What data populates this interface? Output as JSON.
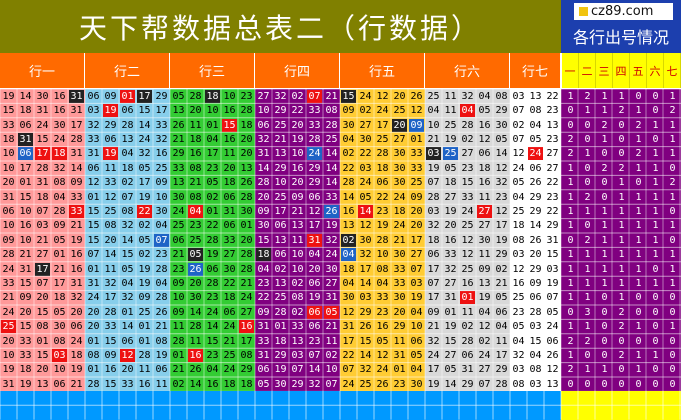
{
  "title": "天下帮数据总表二（行数据）",
  "site_badge": "cz89.com",
  "side_title": "各行出号情况",
  "groups": [
    "行一",
    "行二",
    "行三",
    "行四",
    "行五",
    "行六",
    "行七"
  ],
  "count_headers": [
    "一",
    "二",
    "三",
    "四",
    "五",
    "六",
    "七"
  ],
  "colors": {
    "g1": "#ff9999",
    "g2": "#87ceeb",
    "g3": "#33cc33",
    "g4": "#800080",
    "g5": "#ffcc33",
    "g6": "#d9d9d9",
    "g7": "#ffffff",
    "hit_red": "#ee1111",
    "hit_blue": "#1e63c6",
    "hit_dark": "#222222",
    "count_purple": "#800080",
    "count_yellow": "#ffff00",
    "footer_blue": "#0099ff",
    "footer_yellow": "#ffff00"
  },
  "rows": [
    {
      "v": [
        [
          19,
          14,
          30,
          16,
          31
        ],
        [
          6,
          9,
          1,
          17,
          29
        ],
        [
          5,
          28,
          18,
          10,
          23
        ],
        [
          27,
          32,
          2,
          7,
          21
        ],
        [
          15,
          24,
          12,
          20,
          26
        ],
        [
          25,
          11,
          32,
          4,
          8
        ],
        [
          3,
          13,
          22
        ]
      ],
      "c": [
        1,
        2,
        1,
        1,
        0,
        0,
        1
      ],
      "h": [
        [
          4
        ],
        [
          2,
          3
        ],
        [
          2
        ],
        [
          3
        ],
        [
          0
        ],
        [],
        []
      ]
    },
    {
      "v": [
        [
          15,
          18,
          31,
          16,
          31
        ],
        [
          3,
          19,
          6,
          15,
          17
        ],
        [
          13,
          20,
          10,
          16,
          28
        ],
        [
          10,
          29,
          22,
          33,
          8
        ],
        [
          9,
          2,
          24,
          25,
          12
        ],
        [
          4,
          11,
          4,
          5,
          29
        ],
        [
          7,
          8,
          23
        ]
      ],
      "c": [
        0,
        1,
        1,
        2,
        1,
        0,
        2
      ],
      "h": [
        [],
        [
          1
        ],
        [],
        [],
        [],
        [
          2
        ],
        []
      ]
    },
    {
      "v": [
        [
          33,
          6,
          24,
          30,
          17
        ],
        [
          32,
          29,
          28,
          14,
          33
        ],
        [
          26,
          11,
          1,
          15,
          18
        ],
        [
          6,
          25,
          20,
          33,
          28
        ],
        [
          30,
          27,
          17,
          20,
          9
        ],
        [
          10,
          25,
          28,
          16,
          30
        ],
        [
          2,
          4,
          13
        ]
      ],
      "c": [
        0,
        0,
        2,
        0,
        2,
        1,
        1
      ],
      "h": [
        [],
        [],
        [
          3
        ],
        [],
        [
          3,
          4
        ],
        [],
        [
          4
        ]
      ]
    },
    {
      "v": [
        [
          18,
          31,
          15,
          24,
          28
        ],
        [
          33,
          6,
          13,
          24,
          32
        ],
        [
          21,
          18,
          4,
          16,
          20
        ],
        [
          32,
          21,
          19,
          28,
          25
        ],
        [
          4,
          30,
          25,
          27,
          1
        ],
        [
          21,
          19,
          2,
          12,
          5
        ],
        [
          7,
          5,
          23
        ]
      ],
      "c": [
        2,
        0,
        1,
        0,
        1,
        0,
        1
      ],
      "h": [
        [
          1
        ],
        [],
        [],
        [],
        [],
        [],
        []
      ]
    },
    {
      "v": [
        [
          10,
          6,
          17,
          18,
          31
        ],
        [
          31,
          19,
          4,
          32,
          16
        ],
        [
          29,
          16,
          17,
          11,
          20
        ],
        [
          31,
          13,
          10,
          24,
          14
        ],
        [
          2,
          22,
          28,
          30,
          33
        ],
        [
          3,
          25,
          27,
          6,
          14
        ],
        [
          12,
          24,
          27
        ]
      ],
      "c": [
        2,
        1,
        0,
        0,
        2,
        1,
        1
      ],
      "h": [
        [
          1,
          2,
          3
        ],
        [
          1
        ],
        [],
        [
          3
        ],
        [],
        [
          0,
          1
        ],
        [
          1
        ]
      ]
    },
    {
      "v": [
        [
          10,
          17,
          28,
          32,
          14
        ],
        [
          6,
          11,
          18,
          5,
          25
        ],
        [
          33,
          8,
          23,
          20,
          13
        ],
        [
          14,
          29,
          16,
          29,
          14
        ],
        [
          22,
          3,
          18,
          30,
          33
        ],
        [
          19,
          5,
          23,
          18,
          12
        ],
        [
          24,
          6,
          27
        ]
      ],
      "c": [
        1,
        0,
        2,
        2,
        1,
        1,
        0
      ],
      "h": [
        [],
        [],
        [],
        [],
        [],
        [],
        []
      ]
    },
    {
      "v": [
        [
          20,
          1,
          31,
          8,
          9
        ],
        [
          12,
          33,
          2,
          17,
          9
        ],
        [
          13,
          21,
          5,
          18,
          26
        ],
        [
          28,
          10,
          20,
          29,
          14
        ],
        [
          28,
          24,
          6,
          30,
          25
        ],
        [
          7,
          18,
          15,
          16,
          32
        ],
        [
          5,
          26,
          22
        ]
      ],
      "c": [
        1,
        0,
        0,
        1,
        0,
        1,
        2
      ],
      "h": [
        [],
        [],
        [],
        [],
        [],
        [],
        []
      ]
    },
    {
      "v": [
        [
          31,
          15,
          18,
          4,
          33
        ],
        [
          1,
          12,
          7,
          19,
          10
        ],
        [
          30,
          8,
          2,
          6,
          28
        ],
        [
          20,
          25,
          9,
          6,
          33
        ],
        [
          14,
          5,
          22,
          24,
          9
        ],
        [
          28,
          27,
          33,
          11,
          23
        ],
        [
          4,
          29,
          23
        ]
      ],
      "c": [
        1,
        2,
        0,
        1,
        1,
        1,
        1
      ],
      "h": [
        [],
        [],
        [],
        [],
        [],
        [],
        []
      ]
    },
    {
      "v": [
        [
          6,
          10,
          7,
          28,
          33
        ],
        [
          15,
          25,
          8,
          22,
          30
        ],
        [
          24,
          4,
          1,
          31,
          30
        ],
        [
          9,
          17,
          21,
          12,
          26
        ],
        [
          16,
          14,
          23,
          18,
          20
        ],
        [
          3,
          19,
          24,
          27,
          12
        ],
        [
          25,
          29,
          22
        ]
      ],
      "c": [
        1,
        1,
        1,
        1,
        1,
        1,
        0
      ],
      "h": [
        [
          4
        ],
        [
          3
        ],
        [
          1
        ],
        [
          4
        ],
        [
          1
        ],
        [
          3
        ],
        []
      ]
    },
    {
      "v": [
        [
          10,
          16,
          3,
          9,
          21
        ],
        [
          15,
          8,
          32,
          2,
          4
        ],
        [
          25,
          23,
          22,
          6,
          1
        ],
        [
          30,
          6,
          13,
          17,
          19
        ],
        [
          13,
          12,
          19,
          24,
          20
        ],
        [
          32,
          20,
          25,
          27,
          17
        ],
        [
          18,
          14,
          29
        ]
      ],
      "c": [
        1,
        0,
        1,
        1,
        1,
        1,
        1
      ],
      "h": [
        [],
        [],
        [],
        [],
        [],
        [],
        []
      ]
    },
    {
      "v": [
        [
          9,
          10,
          21,
          5,
          19
        ],
        [
          15,
          20,
          14,
          5,
          7
        ],
        [
          6,
          25,
          28,
          33,
          20
        ],
        [
          15,
          13,
          11,
          31,
          32
        ],
        [
          2,
          30,
          28,
          21,
          17
        ],
        [
          18,
          16,
          12,
          30,
          19
        ],
        [
          8,
          26,
          31
        ]
      ],
      "c": [
        0,
        2,
        1,
        1,
        1,
        1,
        0
      ],
      "h": [
        [],
        [
          4
        ],
        [],
        [
          3
        ],
        [
          0
        ],
        [],
        [
          3
        ]
      ]
    },
    {
      "v": [
        [
          28,
          21,
          27,
          1,
          16
        ],
        [
          7,
          14,
          15,
          2,
          23
        ],
        [
          21,
          5,
          19,
          27,
          28
        ],
        [
          18,
          6,
          10,
          4,
          24
        ],
        [
          4,
          32,
          10,
          30,
          27
        ],
        [
          6,
          33,
          12,
          11,
          29
        ],
        [
          3,
          20,
          15
        ]
      ],
      "c": [
        1,
        1,
        1,
        1,
        1,
        1,
        1
      ],
      "h": [
        [],
        [],
        [
          1
        ],
        [
          0
        ],
        [
          0
        ],
        [],
        []
      ]
    },
    {
      "v": [
        [
          24,
          31,
          17,
          21,
          16
        ],
        [
          1,
          11,
          5,
          19,
          28
        ],
        [
          23,
          26,
          6,
          30,
          28
        ],
        [
          4,
          2,
          10,
          20,
          30
        ],
        [
          18,
          17,
          8,
          33,
          7
        ],
        [
          17,
          32,
          25,
          9,
          2
        ],
        [
          12,
          29,
          3
        ]
      ],
      "c": [
        1,
        1,
        1,
        1,
        1,
        0,
        1
      ],
      "h": [
        [
          2
        ],
        [],
        [
          1
        ],
        [],
        [],
        [],
        []
      ]
    },
    {
      "v": [
        [
          33,
          15,
          7,
          17,
          31
        ],
        [
          31,
          32,
          4,
          19,
          4
        ],
        [
          9,
          20,
          28,
          22,
          21
        ],
        [
          23,
          13,
          2,
          6,
          27
        ],
        [
          4,
          14,
          4,
          33,
          3
        ],
        [
          7,
          27,
          16,
          13,
          21
        ],
        [
          16,
          9,
          19
        ]
      ],
      "c": [
        1,
        1,
        1,
        1,
        1,
        1,
        1
      ],
      "h": [
        [],
        [],
        [],
        [],
        [],
        [],
        []
      ]
    },
    {
      "v": [
        [
          21,
          9,
          20,
          18,
          32
        ],
        [
          24,
          17,
          32,
          9,
          28
        ],
        [
          10,
          30,
          23,
          18,
          24
        ],
        [
          22,
          25,
          8,
          19,
          31
        ],
        [
          30,
          3,
          33,
          30,
          19
        ],
        [
          17,
          31,
          1,
          19,
          5
        ],
        [
          25,
          6,
          7
        ]
      ],
      "c": [
        1,
        1,
        0,
        1,
        0,
        0,
        0
      ],
      "h": [
        [],
        [],
        [],
        [],
        [],
        [
          2
        ],
        []
      ]
    },
    {
      "v": [
        [
          24,
          20,
          15,
          5,
          20
        ],
        [
          20,
          28,
          1,
          25,
          26
        ],
        [
          9,
          14,
          24,
          6,
          27
        ],
        [
          9,
          28,
          2,
          6,
          5
        ],
        [
          12,
          29,
          23,
          20,
          4
        ],
        [
          9,
          1,
          11,
          4,
          6
        ],
        [
          23,
          28,
          5
        ]
      ],
      "c": [
        0,
        3,
        0,
        2,
        0,
        0,
        0
      ],
      "h": [
        [],
        [],
        [],
        [
          3,
          4
        ],
        [],
        [],
        [
          3
        ]
      ]
    },
    {
      "v": [
        [
          25,
          15,
          8,
          30,
          6
        ],
        [
          20,
          33,
          14,
          1,
          21
        ],
        [
          11,
          28,
          14,
          24,
          16
        ],
        [
          31,
          1,
          33,
          6,
          21
        ],
        [
          31,
          26,
          16,
          29,
          10
        ],
        [
          21,
          19,
          2,
          12,
          4
        ],
        [
          5,
          3,
          24
        ]
      ],
      "c": [
        1,
        1,
        0,
        2,
        1,
        0,
        1
      ],
      "h": [
        [
          0
        ],
        [],
        [
          4
        ],
        [],
        [],
        [],
        [
          3
        ]
      ]
    },
    {
      "v": [
        [
          20,
          33,
          1,
          8,
          24
        ],
        [
          1,
          15,
          6,
          1,
          8
        ],
        [
          28,
          11,
          15,
          21,
          17
        ],
        [
          33,
          18,
          13,
          23,
          11
        ],
        [
          17,
          15,
          5,
          11,
          6
        ],
        [
          32,
          15,
          28,
          2,
          11
        ],
        [
          4,
          15,
          6
        ]
      ],
      "c": [
        2,
        2,
        0,
        0,
        0,
        0,
        0
      ],
      "h": [
        [],
        [],
        [],
        [],
        [],
        [],
        []
      ]
    },
    {
      "v": [
        [
          10,
          33,
          15,
          3,
          18
        ],
        [
          8,
          9,
          12,
          28,
          19
        ],
        [
          1,
          16,
          23,
          25,
          8
        ],
        [
          31,
          29,
          3,
          7,
          2
        ],
        [
          22,
          14,
          12,
          31,
          5
        ],
        [
          24,
          27,
          6,
          24,
          17
        ],
        [
          32,
          4,
          26
        ]
      ],
      "c": [
        1,
        0,
        0,
        2,
        1,
        1,
        0
      ],
      "h": [
        [
          3
        ],
        [
          2
        ],
        [
          1
        ],
        [],
        [],
        [],
        []
      ]
    },
    {
      "v": [
        [
          19,
          18,
          20,
          10,
          19
        ],
        [
          1,
          16,
          20,
          11,
          6
        ],
        [
          21,
          26,
          4,
          24,
          29
        ],
        [
          6,
          19,
          7,
          14,
          10
        ],
        [
          7,
          32,
          24,
          1,
          4
        ],
        [
          17,
          5,
          31,
          27,
          29
        ],
        [
          3,
          8,
          12
        ]
      ],
      "c": [
        2,
        1,
        1,
        0,
        1,
        0,
        0
      ],
      "h": [
        [],
        [],
        [],
        [],
        [],
        [],
        []
      ]
    },
    {
      "v": [
        [
          31,
          19,
          13,
          6,
          21
        ],
        [
          28,
          15,
          33,
          16,
          11
        ],
        [
          2,
          14,
          16,
          18,
          18
        ],
        [
          5,
          30,
          29,
          32,
          7
        ],
        [
          24,
          25,
          26,
          23,
          30
        ],
        [
          19,
          14,
          29,
          7,
          28
        ],
        [
          8,
          3,
          13
        ]
      ],
      "c": [
        0,
        0,
        0,
        0,
        0,
        0,
        0
      ],
      "h": [
        [],
        [],
        [],
        [],
        [],
        [],
        []
      ]
    }
  ]
}
